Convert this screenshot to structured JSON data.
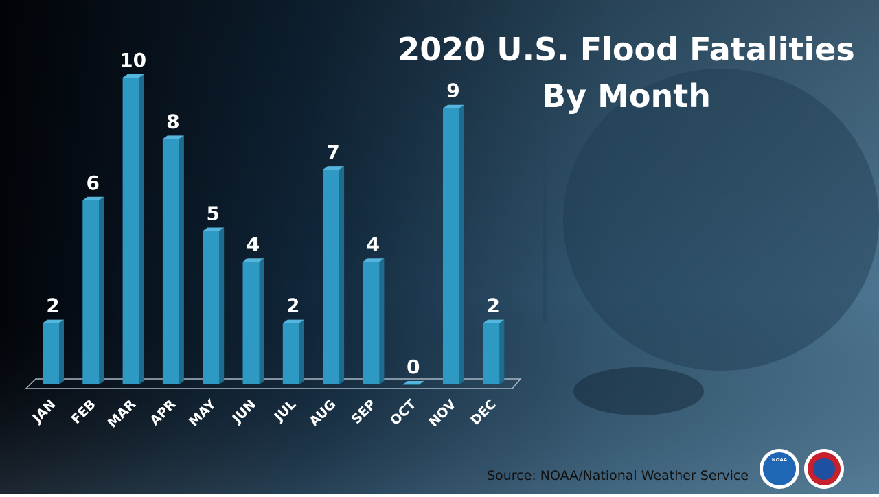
{
  "chart_data": {
    "type": "bar3d",
    "title": [
      "2020 U.S. Flood Fatalities",
      "By Month"
    ],
    "categories": [
      "JAN",
      "FEB",
      "MAR",
      "APR",
      "MAY",
      "JUN",
      "JUL",
      "AUG",
      "SEP",
      "OCT",
      "NOV",
      "DEC"
    ],
    "values": [
      2,
      6,
      10,
      8,
      5,
      4,
      2,
      7,
      4,
      0,
      9,
      2
    ],
    "color": "#2e9ac4",
    "ylim": [
      0,
      10
    ],
    "source": "Source:   NOAA/National Weather Service",
    "logo": "NOAA"
  }
}
